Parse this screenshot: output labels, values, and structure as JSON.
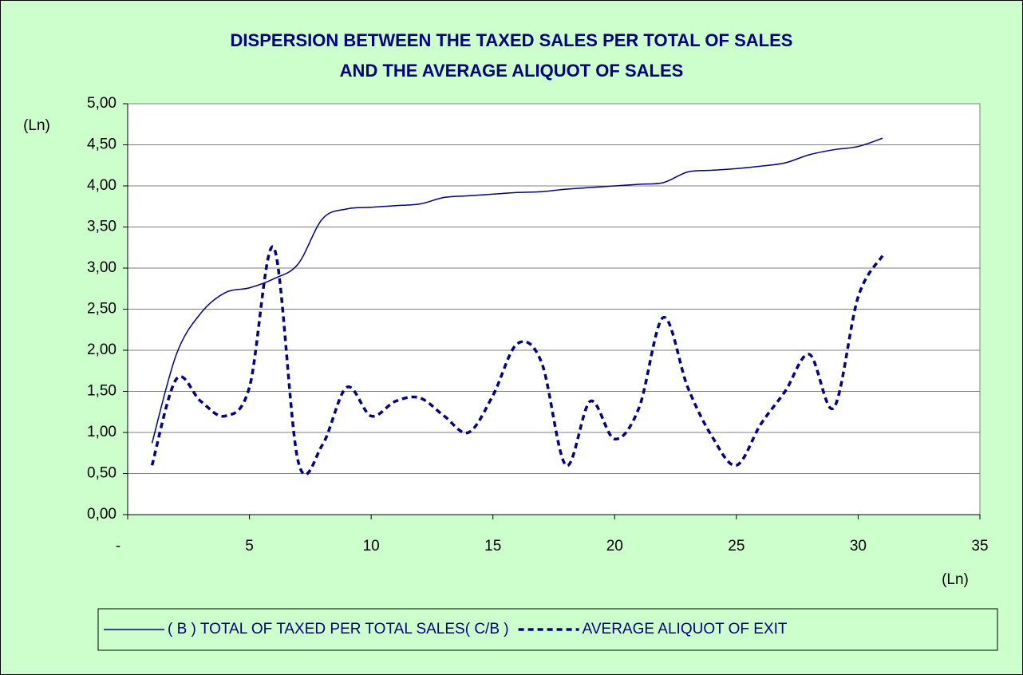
{
  "chart_data": {
    "type": "line",
    "title": [
      "DISPERSION BETWEEN THE TAXED SALES PER TOTAL OF SALES",
      "AND THE AVERAGE ALIQUOT OF SALES"
    ],
    "y_label": "(Ln)",
    "x_label": "(Ln)",
    "x": [
      1,
      2,
      3,
      4,
      5,
      6,
      7,
      8,
      9,
      10,
      11,
      12,
      13,
      14,
      15,
      16,
      17,
      18,
      19,
      20,
      21,
      22,
      23,
      24,
      25,
      26,
      27,
      28,
      29,
      30,
      31
    ],
    "series": [
      {
        "name": "( B ) TOTAL OF TAXED PER TOTAL SALES( C/B )",
        "color": "#000080",
        "style": "solid",
        "values": [
          0.87,
          1.95,
          2.45,
          2.7,
          2.76,
          2.87,
          3.05,
          3.6,
          3.72,
          3.74,
          3.76,
          3.78,
          3.86,
          3.88,
          3.9,
          3.92,
          3.93,
          3.96,
          3.98,
          4.0,
          4.02,
          4.04,
          4.17,
          4.19,
          4.21,
          4.24,
          4.28,
          4.38,
          4.44,
          4.48,
          4.58
        ]
      },
      {
        "name": "AVERAGE ALIQUOT OF EXIT",
        "color": "#000080",
        "style": "dashed",
        "values": [
          0.6,
          1.65,
          1.38,
          1.2,
          1.55,
          3.25,
          0.65,
          0.85,
          1.55,
          1.2,
          1.38,
          1.42,
          1.2,
          1.0,
          1.45,
          2.08,
          1.85,
          0.6,
          1.38,
          0.92,
          1.3,
          2.4,
          1.55,
          0.95,
          0.6,
          1.1,
          1.5,
          1.95,
          1.3,
          2.65,
          3.15
        ]
      }
    ],
    "xlim": [
      0,
      35
    ],
    "xticks": [
      {
        "value": 0,
        "label": "-"
      },
      5,
      10,
      15,
      20,
      25,
      30,
      35
    ],
    "ylim": [
      0,
      5
    ],
    "yticks": [
      {
        "value": 0,
        "label": "0,00"
      },
      {
        "value": 0.5,
        "label": "0,50"
      },
      {
        "value": 1,
        "label": "1,00"
      },
      {
        "value": 1.5,
        "label": "1,50"
      },
      {
        "value": 2,
        "label": "2,00"
      },
      {
        "value": 2.5,
        "label": "2,50"
      },
      {
        "value": 3,
        "label": "3,00"
      },
      {
        "value": 3.5,
        "label": "3,50"
      },
      {
        "value": 4,
        "label": "4,00"
      },
      {
        "value": 4.5,
        "label": "4,50"
      },
      {
        "value": 5,
        "label": "5,00"
      }
    ],
    "grid": true,
    "legend": "bottom",
    "background": "#ccffcc",
    "plot_background": "#ffffff"
  }
}
